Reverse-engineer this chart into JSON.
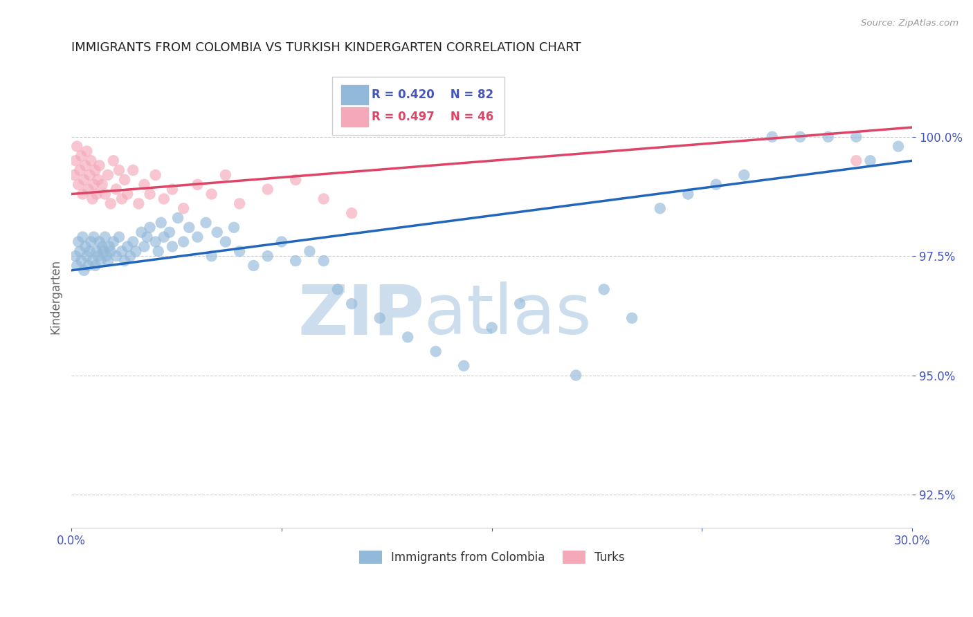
{
  "title": "IMMIGRANTS FROM COLOMBIA VS TURKISH KINDERGARTEN CORRELATION CHART",
  "source": "Source: ZipAtlas.com",
  "ylabel": "Kindergarten",
  "xlim": [
    0.0,
    30.0
  ],
  "ylim": [
    91.8,
    101.5
  ],
  "yticks": [
    92.5,
    95.0,
    97.5,
    100.0
  ],
  "xticks": [
    0.0,
    7.5,
    15.0,
    22.5,
    30.0
  ],
  "xtick_labels": [
    "0.0%",
    "",
    "",
    "",
    "30.0%"
  ],
  "ytick_labels": [
    "92.5%",
    "95.0%",
    "97.5%",
    "100.0%"
  ],
  "legend_blue_r": "R = 0.420",
  "legend_blue_n": "N = 82",
  "legend_pink_r": "R = 0.497",
  "legend_pink_n": "N = 46",
  "legend_blue_label": "Immigrants from Colombia",
  "legend_pink_label": "Turks",
  "blue_color": "#92b9d9",
  "pink_color": "#f4a8b8",
  "blue_line_color": "#2266bb",
  "pink_line_color": "#dd4466",
  "axis_label_color": "#4455bb",
  "watermark_zip": "ZIP",
  "watermark_atlas": "atlas",
  "watermark_color": "#ccdded",
  "blue_scatter_x": [
    0.15,
    0.2,
    0.25,
    0.3,
    0.35,
    0.4,
    0.45,
    0.5,
    0.55,
    0.6,
    0.65,
    0.7,
    0.75,
    0.8,
    0.85,
    0.9,
    0.95,
    1.0,
    1.05,
    1.1,
    1.15,
    1.2,
    1.25,
    1.3,
    1.35,
    1.4,
    1.5,
    1.6,
    1.7,
    1.8,
    1.9,
    2.0,
    2.1,
    2.2,
    2.3,
    2.5,
    2.6,
    2.7,
    2.8,
    3.0,
    3.1,
    3.2,
    3.3,
    3.5,
    3.6,
    3.8,
    4.0,
    4.2,
    4.5,
    4.8,
    5.0,
    5.2,
    5.5,
    5.8,
    6.0,
    6.5,
    7.0,
    7.5,
    8.0,
    8.5,
    9.0,
    9.5,
    10.0,
    11.0,
    12.0,
    13.0,
    14.0,
    15.0,
    16.0,
    18.0,
    19.0,
    20.0,
    21.0,
    22.0,
    23.0,
    24.0,
    25.0,
    26.0,
    27.0,
    28.0,
    28.5,
    29.5
  ],
  "blue_scatter_y": [
    97.5,
    97.3,
    97.8,
    97.6,
    97.4,
    97.9,
    97.2,
    97.7,
    97.5,
    97.3,
    97.6,
    97.8,
    97.4,
    97.9,
    97.3,
    97.6,
    97.5,
    97.8,
    97.4,
    97.7,
    97.6,
    97.9,
    97.5,
    97.4,
    97.7,
    97.6,
    97.8,
    97.5,
    97.9,
    97.6,
    97.4,
    97.7,
    97.5,
    97.8,
    97.6,
    98.0,
    97.7,
    97.9,
    98.1,
    97.8,
    97.6,
    98.2,
    97.9,
    98.0,
    97.7,
    98.3,
    97.8,
    98.1,
    97.9,
    98.2,
    97.5,
    98.0,
    97.8,
    98.1,
    97.6,
    97.3,
    97.5,
    97.8,
    97.4,
    97.6,
    97.4,
    96.8,
    96.5,
    96.2,
    95.8,
    95.5,
    95.2,
    96.0,
    96.5,
    95.0,
    96.8,
    96.2,
    98.5,
    98.8,
    99.0,
    99.2,
    100.0,
    100.0,
    100.0,
    100.0,
    99.5,
    99.8
  ],
  "pink_scatter_x": [
    0.1,
    0.15,
    0.2,
    0.25,
    0.3,
    0.35,
    0.4,
    0.45,
    0.5,
    0.55,
    0.6,
    0.65,
    0.7,
    0.75,
    0.8,
    0.85,
    0.9,
    0.95,
    1.0,
    1.1,
    1.2,
    1.3,
    1.4,
    1.5,
    1.6,
    1.7,
    1.8,
    1.9,
    2.0,
    2.2,
    2.4,
    2.6,
    2.8,
    3.0,
    3.3,
    3.6,
    4.0,
    4.5,
    5.0,
    5.5,
    6.0,
    7.0,
    8.0,
    9.0,
    10.0,
    28.0
  ],
  "pink_scatter_y": [
    99.2,
    99.5,
    99.8,
    99.0,
    99.3,
    99.6,
    98.8,
    99.1,
    99.4,
    99.7,
    98.9,
    99.2,
    99.5,
    98.7,
    99.0,
    99.3,
    98.8,
    99.1,
    99.4,
    99.0,
    98.8,
    99.2,
    98.6,
    99.5,
    98.9,
    99.3,
    98.7,
    99.1,
    98.8,
    99.3,
    98.6,
    99.0,
    98.8,
    99.2,
    98.7,
    98.9,
    98.5,
    99.0,
    98.8,
    99.2,
    98.6,
    98.9,
    99.1,
    98.7,
    98.4,
    99.5
  ]
}
